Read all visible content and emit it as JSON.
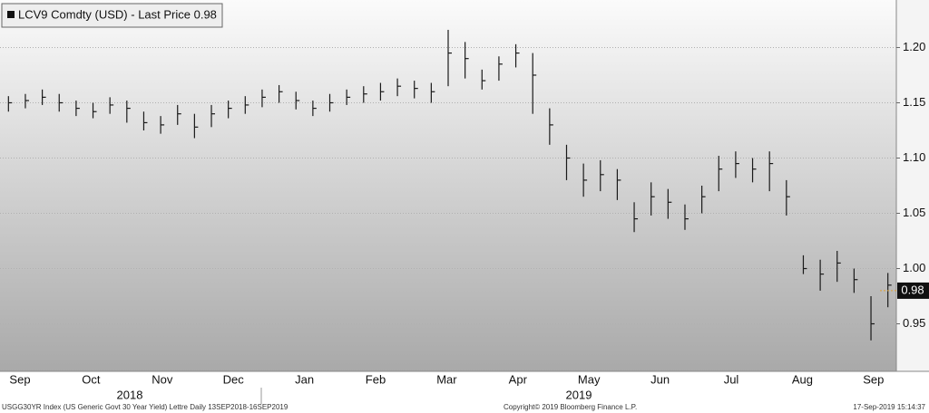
{
  "chart_data": {
    "type": "ohlc",
    "title": "LCV9 Comdty (USD) - Last Price 0.98",
    "last_price": 0.98,
    "color": "#1a1a1a",
    "month_labels": [
      "Sep",
      "Oct",
      "Nov",
      "Dec",
      "Jan",
      "Feb",
      "Mar",
      "Apr",
      "May",
      "Jun",
      "Jul",
      "Aug",
      "Sep"
    ],
    "year_labels": [
      "2018",
      "2019"
    ],
    "ylim": [
      0.907,
      1.243
    ],
    "yticks": [
      0.95,
      {
        "value": 1.0,
        "label": "1.00"
      },
      1.05,
      {
        "value": 1.1,
        "label": "1.10"
      },
      1.15,
      {
        "value": 1.2,
        "label": "1.20"
      }
    ],
    "grid": true,
    "high": [
      1.156,
      1.158,
      1.162,
      1.158,
      1.152,
      1.15,
      1.155,
      1.152,
      1.142,
      1.138,
      1.148,
      1.14,
      1.148,
      1.152,
      1.156,
      1.162,
      1.166,
      1.16,
      1.152,
      1.158,
      1.162,
      1.165,
      1.168,
      1.172,
      1.17,
      1.168,
      1.216,
      1.205,
      1.18,
      1.192,
      1.203,
      1.195,
      1.145,
      1.112,
      1.095,
      1.098,
      1.09,
      1.06,
      1.078,
      1.072,
      1.058,
      1.075,
      1.102,
      1.106,
      1.1,
      1.106,
      1.08,
      1.012,
      1.008,
      1.016,
      1.0,
      0.975,
      0.996
    ],
    "low": [
      1.142,
      1.145,
      1.148,
      1.142,
      1.138,
      1.136,
      1.14,
      1.132,
      1.125,
      1.122,
      1.13,
      1.118,
      1.128,
      1.136,
      1.14,
      1.146,
      1.15,
      1.144,
      1.138,
      1.142,
      1.148,
      1.15,
      1.152,
      1.156,
      1.154,
      1.15,
      1.165,
      1.172,
      1.162,
      1.17,
      1.182,
      1.14,
      1.112,
      1.08,
      1.065,
      1.07,
      1.062,
      1.033,
      1.048,
      1.045,
      1.035,
      1.05,
      1.07,
      1.082,
      1.078,
      1.07,
      1.048,
      0.995,
      0.98,
      0.988,
      0.978,
      0.935,
      0.965
    ],
    "close": [
      1.15,
      1.152,
      1.155,
      1.15,
      1.145,
      1.142,
      1.148,
      1.145,
      1.132,
      1.13,
      1.14,
      1.128,
      1.14,
      1.145,
      1.148,
      1.155,
      1.16,
      1.152,
      1.145,
      1.15,
      1.155,
      1.158,
      1.16,
      1.165,
      1.163,
      1.16,
      1.195,
      1.19,
      1.17,
      1.185,
      1.195,
      1.175,
      1.13,
      1.1,
      1.08,
      1.085,
      1.08,
      1.045,
      1.065,
      1.06,
      1.045,
      1.065,
      1.09,
      1.095,
      1.09,
      1.095,
      1.065,
      1.0,
      0.995,
      1.005,
      0.99,
      0.95,
      0.985
    ],
    "footer_left": "USGG30YR Index (US Generic Govt 30 Year Yield) Lettre  Daily 13SEP2018-16SEP2019",
    "footer_center": "Copyright© 2019 Bloomberg Finance L.P.",
    "footer_right": "17-Sep-2019 15:14:37"
  }
}
